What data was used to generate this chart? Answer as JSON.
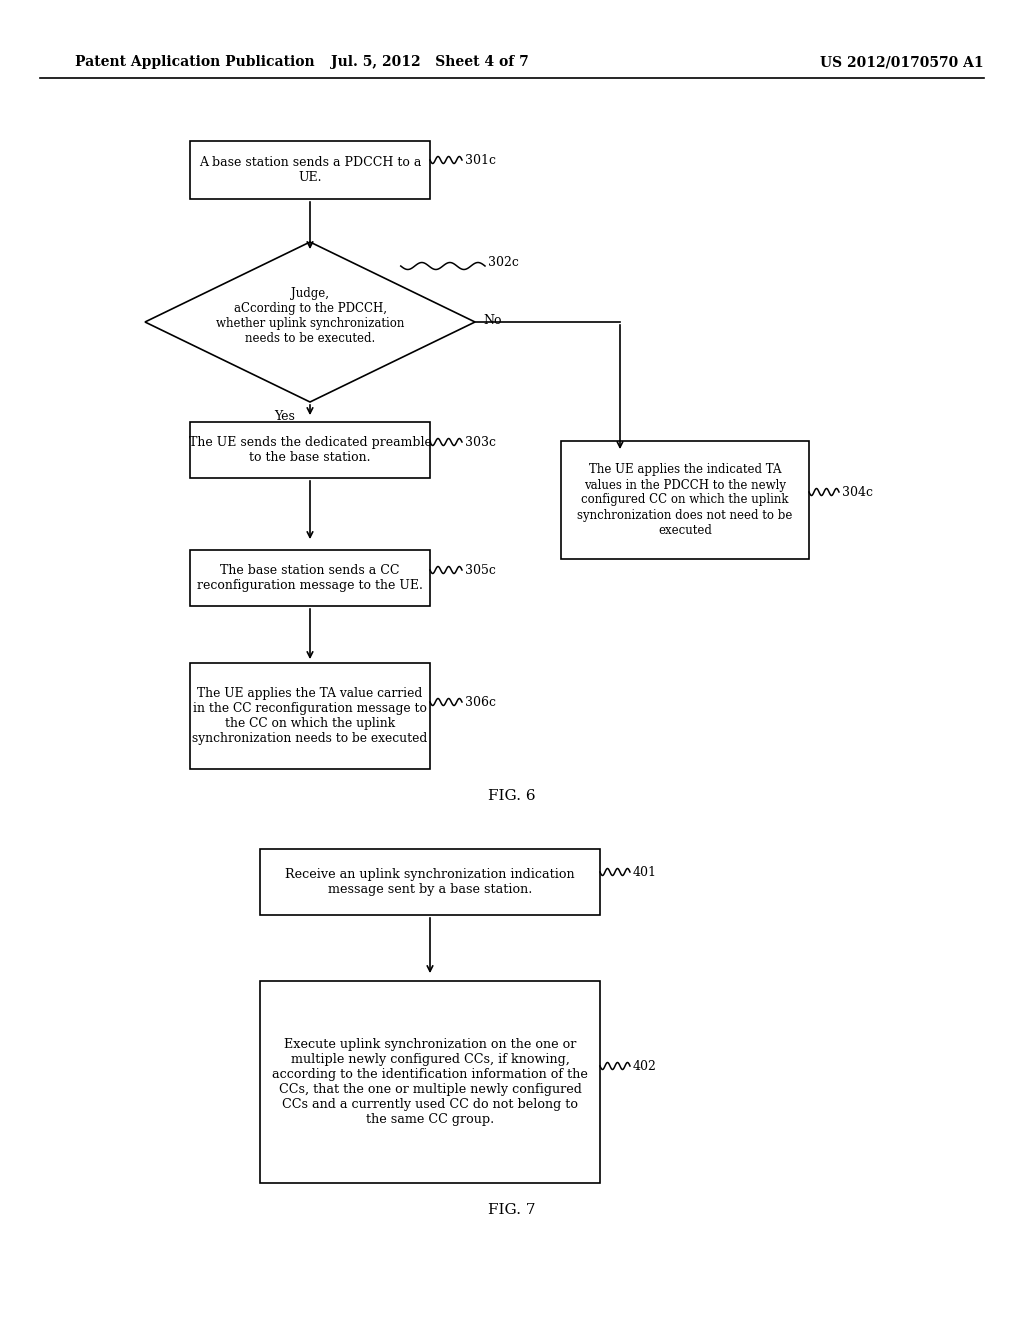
{
  "header_left": "Patent Application Publication",
  "header_mid": "Jul. 5, 2012   Sheet 4 of 7",
  "header_right": "US 2012/0170570 A1",
  "fig6_label": "FIG. 6",
  "fig7_label": "FIG. 7",
  "bg": "#ffffff"
}
